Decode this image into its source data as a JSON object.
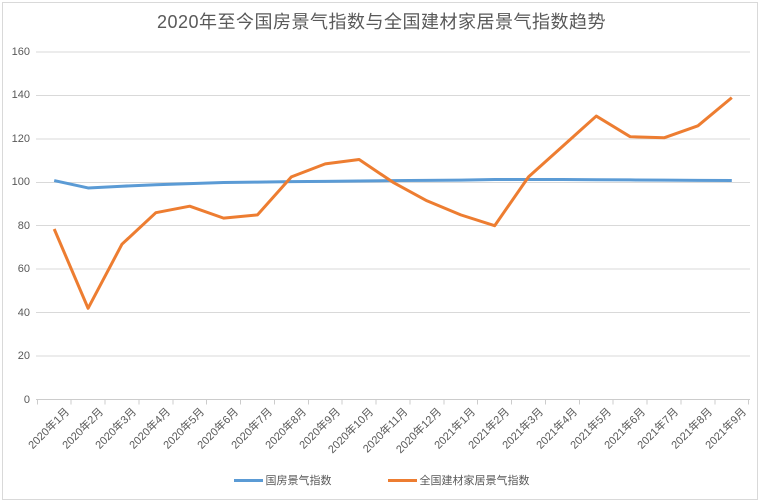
{
  "chart_data": {
    "type": "line",
    "title": "2020年至今国房景气指数与全国建材家居景气指数趋势",
    "categories": [
      "2020年1月",
      "2020年2月",
      "2020年3月",
      "2020年4月",
      "2020年5月",
      "2020年6月",
      "2020年7月",
      "2020年8月",
      "2020年9月",
      "2020年10月",
      "2020年11月",
      "2020年12月",
      "2021年1月",
      "2021年2月",
      "2021年3月",
      "2021年4月",
      "2021年5月",
      "2021年6月",
      "2021年7月",
      "2021年8月",
      "2021年9月"
    ],
    "series": [
      {
        "name": "国房景气指数",
        "color": "#5B9BD5",
        "values": [
          100.8,
          97.4,
          98.2,
          98.9,
          99.4,
          99.9,
          100.1,
          100.3,
          100.4,
          100.6,
          100.8,
          100.9,
          101.0,
          101.3,
          101.3,
          101.3,
          101.2,
          101.1,
          101.0,
          100.9,
          100.8
        ]
      },
      {
        "name": "全国建材家居景气指数",
        "color": "#ED7D31",
        "values": [
          78.5,
          42,
          71.5,
          86,
          89,
          83.5,
          85,
          102.5,
          108.5,
          110.5,
          100,
          91.5,
          85,
          80,
          102.5,
          116.5,
          130.5,
          121,
          120.5,
          126,
          139
        ]
      }
    ],
    "ylim": [
      0,
      160
    ],
    "yticks": [
      0,
      20,
      40,
      60,
      80,
      100,
      120,
      140,
      160
    ],
    "xlabel": "",
    "ylabel": "",
    "grid": true,
    "legend_position": "bottom"
  },
  "colors": {
    "background": "#FFFFFF",
    "text": "#595959",
    "gridline": "#D9D9D9",
    "axis": "#CCCCCC",
    "chart_border": "#D9D9D9",
    "series_blue": "#5B9BD5",
    "series_orange": "#ED7D31"
  }
}
